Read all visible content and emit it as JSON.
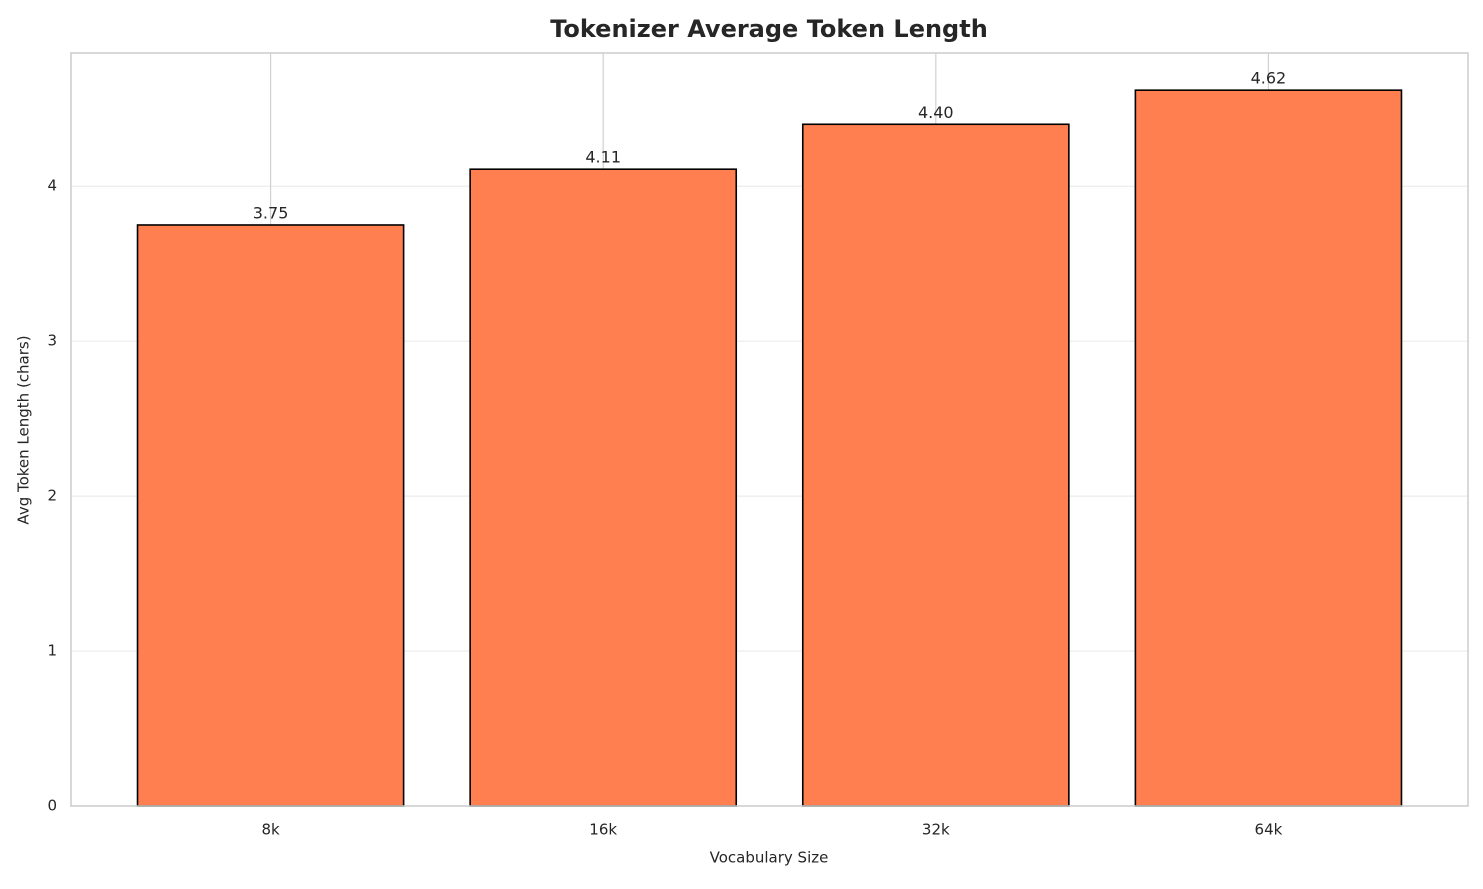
{
  "chart_data": {
    "type": "bar",
    "title": "Tokenizer Average Token Length",
    "x_label": "Vocabulary Size",
    "y_label": "Avg Token Length (chars)",
    "categories": [
      "8k",
      "16k",
      "32k",
      "64k"
    ],
    "values": [
      3.75,
      4.11,
      4.4,
      4.62
    ],
    "value_labels": [
      "3.75",
      "4.11",
      "4.40",
      "4.62"
    ],
    "color": "#ff7f50",
    "ylim": [
      0,
      4.86
    ],
    "yticks": [
      0,
      1,
      2,
      3,
      4
    ],
    "grid": true
  }
}
